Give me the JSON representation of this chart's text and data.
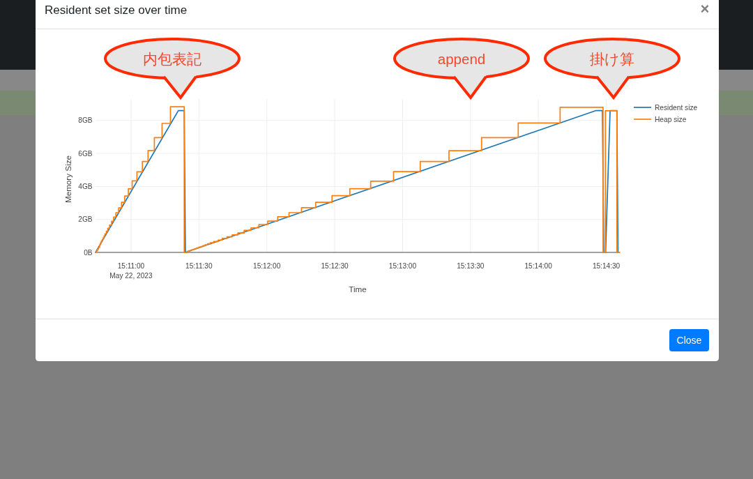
{
  "chart_data": {
    "type": "line",
    "title": "Resident set size over time",
    "xlabel": "Time",
    "ylabel": "Memory Size",
    "series": [
      {
        "name": "Resident size",
        "color": "#1f77b4",
        "x": [
          "2023-05-22T15:10:44.3",
          "2023-05-22T15:11:20.9",
          "2023-05-22T15:11:23.5",
          "2023-05-22T15:11:24.0",
          "2023-05-22T15:14:25.5",
          "2023-05-22T15:14:28.3",
          "2023-05-22T15:14:28.9",
          "2023-05-22T15:14:29.7",
          "2023-05-22T15:14:31.7",
          "2023-05-22T15:14:34.7",
          "2023-05-22T15:14:35.2"
        ],
        "values": [
          0,
          8.6,
          8.6,
          0,
          8.6,
          8.6,
          0,
          0,
          8.6,
          8.6,
          0
        ]
      },
      {
        "name": "Heap size",
        "type": "step",
        "color": "#ff7f0e",
        "x": [
          "2023-05-22T15:10:44.3",
          "2023-05-22T15:10:44.7",
          "2023-05-22T15:10:45.2",
          "2023-05-22T15:10:45.6",
          "2023-05-22T15:10:46.1",
          "2023-05-22T15:10:46.4",
          "2023-05-22T15:10:46.7",
          "2023-05-22T15:10:46.9",
          "2023-05-22T15:10:47.3",
          "2023-05-22T15:10:47.7",
          "2023-05-22T15:10:48.1",
          "2023-05-22T15:10:48.5",
          "2023-05-22T15:10:49.1",
          "2023-05-22T15:10:49.7",
          "2023-05-22T15:10:50.5",
          "2023-05-22T15:10:51.4",
          "2023-05-22T15:10:52.3",
          "2023-05-22T15:10:53.3",
          "2023-05-22T15:10:54.5",
          "2023-05-22T15:10:55.8",
          "2023-05-22T15:10:57.2",
          "2023-05-22T15:10:58.8",
          "2023-05-22T15:11:00.5",
          "2023-05-22T15:11:02.6",
          "2023-05-22T15:11:05.0",
          "2023-05-22T15:11:07.5",
          "2023-05-22T15:11:10.3",
          "2023-05-22T15:11:13.7",
          "2023-05-22T15:11:17.4",
          "2023-05-22T15:11:23.5",
          "2023-05-22T15:11:25.0",
          "2023-05-22T15:11:25.6",
          "2023-05-22T15:11:26.3",
          "2023-05-22T15:11:26.9",
          "2023-05-22T15:11:27.5",
          "2023-05-22T15:11:28.1",
          "2023-05-22T15:11:28.7",
          "2023-05-22T15:11:29.3",
          "2023-05-22T15:11:30.0",
          "2023-05-22T15:11:30.8",
          "2023-05-22T15:11:31.7",
          "2023-05-22T15:11:32.7",
          "2023-05-22T15:11:33.8",
          "2023-05-22T15:11:35.0",
          "2023-05-22T15:11:36.5",
          "2023-05-22T15:11:38.5",
          "2023-05-22T15:11:40.3",
          "2023-05-22T15:11:42.4",
          "2023-05-22T15:11:44.7",
          "2023-05-22T15:11:47.2",
          "2023-05-22T15:11:50.0",
          "2023-05-22T15:11:53.0",
          "2023-05-22T15:11:56.5",
          "2023-05-22T15:12:00.4",
          "2023-05-22T15:12:04.8",
          "2023-05-22T15:12:09.8",
          "2023-05-22T15:12:15.3",
          "2023-05-22T15:12:21.6",
          "2023-05-22T15:12:28.8",
          "2023-05-22T15:12:36.7",
          "2023-05-22T15:12:45.9",
          "2023-05-22T15:12:56.0",
          "2023-05-22T15:13:07.8",
          "2023-05-22T15:13:20.5",
          "2023-05-22T15:13:34.9",
          "2023-05-22T15:13:51.1",
          "2023-05-22T15:14:09.6",
          "2023-05-22T15:14:28.6",
          "2023-05-22T15:14:29.6",
          "2023-05-22T15:14:34.7",
          "2023-05-22T15:14:36.0"
        ],
        "values": [
          0,
          0.1,
          0.2,
          0.3,
          0.45,
          0.55,
          0.62,
          0.7,
          0.79,
          0.89,
          1.0,
          1.13,
          1.28,
          1.46,
          1.66,
          1.89,
          2.14,
          2.41,
          2.7,
          3.04,
          3.42,
          3.85,
          4.34,
          4.89,
          5.51,
          6.18,
          6.96,
          7.82,
          8.83,
          0,
          0.07,
          0.1,
          0.13,
          0.16,
          0.19,
          0.22,
          0.25,
          0.28,
          0.32,
          0.36,
          0.41,
          0.46,
          0.52,
          0.59,
          0.66,
          0.75,
          0.85,
          0.95,
          1.06,
          1.18,
          1.34,
          1.49,
          1.69,
          1.9,
          2.16,
          2.41,
          2.71,
          3.04,
          3.44,
          3.86,
          4.32,
          4.9,
          5.51,
          6.17,
          6.96,
          7.85,
          8.8,
          0,
          8.59,
          0,
          0
        ]
      }
    ],
    "xlim": [
      "2023-05-22T15:10:44.3",
      "2023-05-22T15:14:36.0"
    ],
    "xticks": [
      {
        "value": "2023-05-22T15:11:00",
        "label": "15:11:00\nMay 22, 2023"
      },
      {
        "value": "2023-05-22T15:11:30",
        "label": "15:11:30"
      },
      {
        "value": "2023-05-22T15:12:00",
        "label": "15:12:00"
      },
      {
        "value": "2023-05-22T15:12:30",
        "label": "15:12:30"
      },
      {
        "value": "2023-05-22T15:13:00",
        "label": "15:13:00"
      },
      {
        "value": "2023-05-22T15:13:30",
        "label": "15:13:30"
      },
      {
        "value": "2023-05-22T15:14:00",
        "label": "15:14:00"
      },
      {
        "value": "2023-05-22T15:14:30",
        "label": "15:14:30"
      }
    ],
    "ylim": [
      0,
      9.3
    ],
    "yticks": [
      {
        "value": 0,
        "label": "0B"
      },
      {
        "value": 2,
        "label": "2GB"
      },
      {
        "value": 4,
        "label": "4GB"
      },
      {
        "value": 6,
        "label": "6GB"
      },
      {
        "value": 8,
        "label": "8GB"
      }
    ],
    "grid": true,
    "legend": "top right",
    "line_style": "solid",
    "annotations": [
      "内包表記",
      "append",
      "掛け算",
      "×",
      "Close"
    ]
  }
}
